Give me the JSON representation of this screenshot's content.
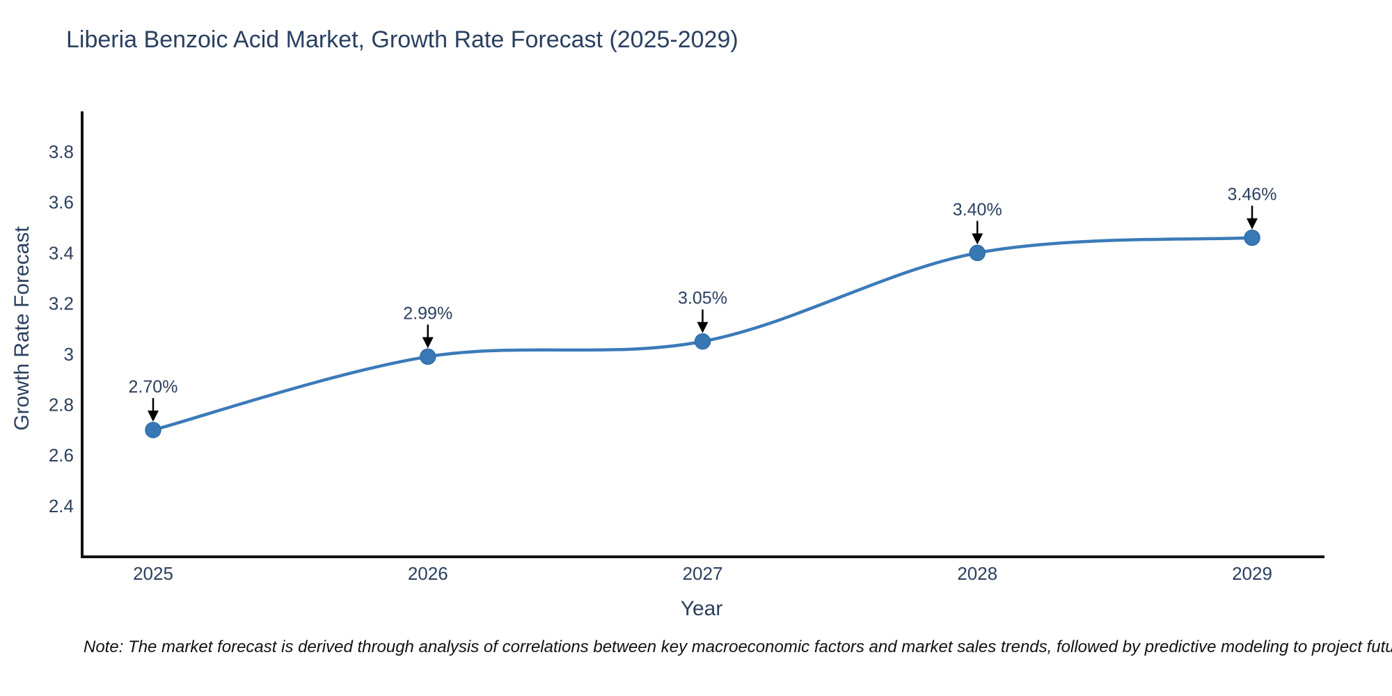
{
  "note": "Note: The market forecast is derived through analysis of correlations between key macroeconomic factors and market sales trends, followed by predictive modeling to project future sales",
  "colors": {
    "title_text": "#2a3f5f",
    "tick_text": "#2a3f5f",
    "axis_line": "#111111",
    "line": "#3b7ab8",
    "marker": "#3878b4",
    "marker_edge": "#2e6ca8",
    "annotation_text": "#2a3f5f",
    "annotation_arrow": "#000000",
    "background": "#ffffff"
  },
  "chart_data": {
    "type": "line",
    "title": "Liberia Benzoic Acid Market, Growth Rate Forecast (2025-2029)",
    "xlabel": "Year",
    "ylabel": "Growth Rate Forecast",
    "x": [
      2025,
      2026,
      2027,
      2028,
      2029
    ],
    "x_tick_labels": [
      "2025",
      "2026",
      "2027",
      "2028",
      "2029"
    ],
    "values": [
      2.7,
      2.99,
      3.05,
      3.4,
      3.46
    ],
    "data_labels": [
      "2.70%",
      "2.99%",
      "3.05%",
      "3.40%",
      "3.46%"
    ],
    "y_tick_values": [
      2.4,
      2.6,
      2.8,
      3,
      3.2,
      3.4,
      3.6,
      3.8
    ],
    "y_tick_labels": [
      "2.4",
      "2.6",
      "2.8",
      "3",
      "3.2",
      "3.4",
      "3.6",
      "3.8"
    ],
    "ylim": [
      2.2,
      3.96
    ],
    "xlim_years": [
      2024.74,
      2029.26
    ],
    "line_shape": "spline",
    "grid": false,
    "legend": false,
    "markers": true
  }
}
